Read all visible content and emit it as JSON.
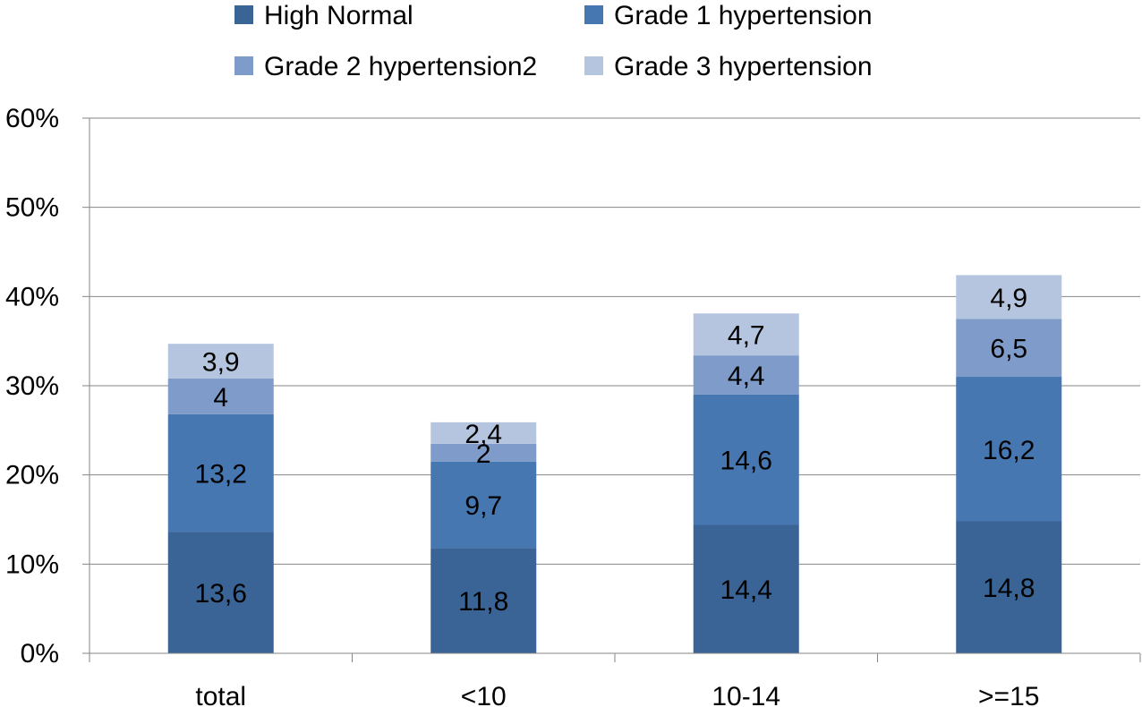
{
  "chart_data": {
    "type": "bar",
    "stacked": true,
    "title": "",
    "xlabel": "",
    "ylabel": "",
    "categories": [
      "total",
      "<10",
      "10-14",
      ">=15"
    ],
    "ylim": [
      0,
      60
    ],
    "yticks": [
      "0%",
      "10%",
      "20%",
      "30%",
      "40%",
      "50%",
      "60%"
    ],
    "grid": true,
    "legend_position": "top",
    "series": [
      {
        "name": "High Normal",
        "color": "#3a6496",
        "values": [
          13.6,
          11.8,
          14.4,
          14.8
        ],
        "labels": [
          "13,6",
          "11,8",
          "14,4",
          "14,8"
        ]
      },
      {
        "name": "Grade 1 hypertension",
        "color": "#4677b1",
        "values": [
          13.2,
          9.7,
          14.6,
          16.2
        ],
        "labels": [
          "13,2",
          "9,7",
          "14,6",
          "16,2"
        ]
      },
      {
        "name": "Grade 2 hypertension2",
        "color": "#7e9bc9",
        "values": [
          4,
          2,
          4.4,
          6.5
        ],
        "labels": [
          "4",
          "2",
          "4,4",
          "6,5"
        ]
      },
      {
        "name": "Grade 3 hypertension",
        "color": "#b6c5df",
        "values": [
          3.9,
          2.4,
          4.7,
          4.9
        ],
        "labels": [
          "3,9",
          "2,4",
          "4,7",
          "4,9"
        ]
      }
    ]
  }
}
